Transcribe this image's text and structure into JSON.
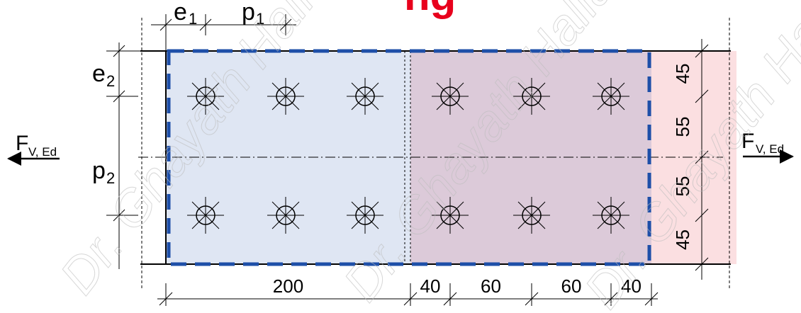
{
  "colors": {
    "left_plate": "#dfe6f3",
    "right_plate": "#dccad9",
    "splice_strip": "#fbdfe1",
    "block_outline": "#1e4fa8",
    "title": "#e8001c",
    "line": "#000000"
  },
  "title_fragment": "ng",
  "symbols": {
    "e1": {
      "main": "e",
      "sub": "1"
    },
    "p1": {
      "main": "p",
      "sub": "1"
    },
    "e2": {
      "main": "e",
      "sub": "2"
    },
    "p2": {
      "main": "p",
      "sub": "2"
    }
  },
  "forces": {
    "left": {
      "main": "F",
      "sub": "V, Ed"
    },
    "right": {
      "main": "F",
      "sub": "V, Ed"
    }
  },
  "bottom_dims": [
    "200",
    "40",
    "60",
    "60",
    "40"
  ],
  "right_dims": [
    "45",
    "55",
    "55",
    "45"
  ],
  "watermark": "Dr. Ghayath Hallak"
}
